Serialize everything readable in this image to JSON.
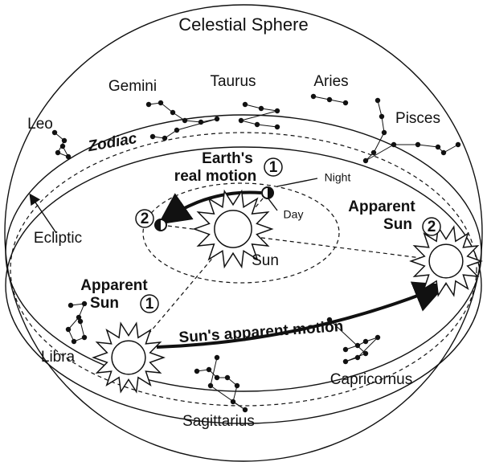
{
  "title": "Celestial Sphere",
  "zodiac": "Zodiac",
  "ecliptic": "Ecliptic",
  "constellations": [
    "Gemini",
    "Taurus",
    "Aries",
    "Leo",
    "Pisces",
    "Libra",
    "Capricornus",
    "Sagittarius"
  ],
  "earth_motion": [
    "Earth's",
    "real motion"
  ],
  "night": "Night",
  "day": "Day",
  "sun": "Sun",
  "apparent_sun": [
    "Apparent",
    "Sun"
  ],
  "sun_apparent_motion": "Sun's apparent motion",
  "positions": [
    "1",
    "2"
  ]
}
